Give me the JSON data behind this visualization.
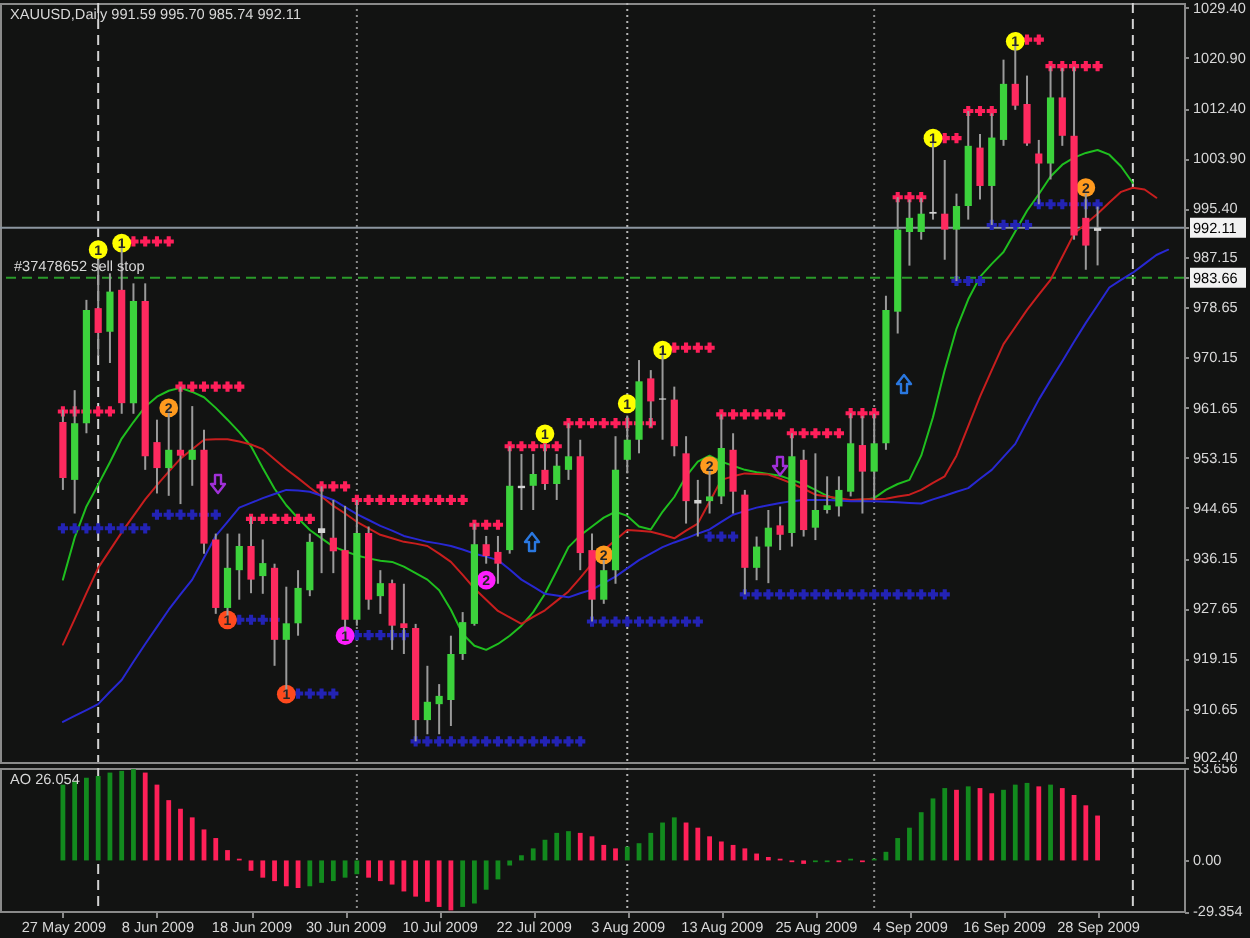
{
  "chart_data": [
    {
      "type": "candlestick",
      "title": "XAUUSD,Daily 991.59 995.70 985.74 992.11",
      "categories": [
        "27 May 2009",
        null,
        null,
        null,
        null,
        null,
        null,
        null,
        "8 Jun 2009",
        null,
        null,
        null,
        null,
        null,
        null,
        null,
        "18 Jun 2009",
        null,
        null,
        null,
        null,
        null,
        null,
        null,
        "30 Jun 2009",
        null,
        null,
        null,
        null,
        null,
        null,
        null,
        "10 Jul 2009",
        null,
        null,
        null,
        null,
        null,
        null,
        null,
        "22 Jul 2009",
        null,
        null,
        null,
        null,
        null,
        null,
        null,
        "3 Aug 2009",
        null,
        null,
        null,
        null,
        null,
        null,
        null,
        "13 Aug 2009",
        null,
        null,
        null,
        null,
        null,
        null,
        null,
        "25 Aug 2009",
        null,
        null,
        null,
        null,
        null,
        null,
        null,
        "4 Sep 2009",
        null,
        null,
        null,
        null,
        null,
        null,
        null,
        "16 Sep 2009",
        null,
        null,
        null,
        null,
        null,
        null,
        null,
        "28 Sep 2009",
        null,
        null,
        null,
        null,
        null,
        null
      ],
      "ohlc": [
        [
          959.2,
          961.3,
          947.7,
          949.7
        ],
        [
          949.4,
          964.6,
          943.7,
          959.0
        ],
        [
          959.0,
          979.9,
          957.3,
          978.2
        ],
        [
          978.5,
          986.7,
          970.4,
          974.3
        ],
        [
          974.5,
          984.4,
          969.2,
          981.3
        ],
        [
          981.6,
          989.8,
          960.6,
          962.4
        ],
        [
          962.4,
          982.7,
          960.6,
          979.7
        ],
        [
          979.7,
          982.7,
          951.1,
          953.4
        ],
        [
          955.8,
          959.6,
          947.1,
          951.4
        ],
        [
          951.4,
          961.3,
          946.7,
          954.5
        ],
        [
          954.5,
          965.2,
          945.3,
          953.5
        ],
        [
          952.8,
          961.9,
          948.4,
          954.5
        ],
        [
          954.5,
          957.9,
          936.9,
          938.6
        ],
        [
          939.3,
          940.3,
          926.7,
          927.7
        ],
        [
          927.7,
          940.3,
          925.7,
          934.5
        ],
        [
          934.1,
          940.3,
          929.1,
          938.2
        ],
        [
          938.2,
          943.2,
          930.2,
          932.5
        ],
        [
          933.1,
          939.3,
          930.1,
          935.3
        ],
        [
          934.5,
          935.2,
          917.9,
          922.3
        ],
        [
          922.3,
          931.3,
          913.1,
          925.1
        ],
        [
          925.1,
          934.1,
          923.0,
          931.1
        ],
        [
          930.7,
          940.3,
          929.7,
          938.9
        ],
        [
          940.4,
          948.3,
          933.6,
          941.2
        ],
        [
          939.6,
          946.0,
          933.6,
          937.3
        ],
        [
          937.5,
          945.0,
          923.1,
          925.7
        ],
        [
          925.7,
          946.0,
          924.7,
          940.4
        ],
        [
          940.4,
          941.5,
          927.4,
          929.1
        ],
        [
          929.7,
          934.1,
          926.7,
          931.9
        ],
        [
          931.9,
          932.5,
          920.6,
          924.7
        ],
        [
          925.1,
          931.8,
          919.9,
          924.3
        ],
        [
          924.3,
          925.0,
          905.1,
          908.7
        ],
        [
          908.7,
          917.9,
          906.3,
          911.8
        ],
        [
          911.4,
          914.8,
          906.3,
          912.8
        ],
        [
          912.1,
          923.0,
          907.7,
          919.9
        ],
        [
          919.9,
          927.0,
          918.9,
          925.3
        ],
        [
          925.0,
          942.0,
          924.7,
          938.5
        ],
        [
          938.5,
          939.9,
          935.2,
          936.5
        ],
        [
          937.2,
          939.9,
          931.8,
          935.2
        ],
        [
          937.5,
          955.1,
          936.9,
          948.4
        ],
        [
          948.0,
          953.8,
          944.3,
          948.4
        ],
        [
          948.4,
          953.8,
          944.3,
          950.4
        ],
        [
          951.1,
          955.5,
          947.7,
          948.7
        ],
        [
          948.7,
          953.8,
          946.0,
          951.8
        ],
        [
          951.1,
          959.0,
          949.4,
          953.4
        ],
        [
          953.4,
          956.2,
          934.1,
          937.0
        ],
        [
          937.5,
          940.3,
          925.4,
          929.1
        ],
        [
          929.1,
          935.8,
          928.4,
          934.1
        ],
        [
          934.1,
          956.8,
          931.8,
          951.1
        ],
        [
          952.8,
          960.3,
          950.5,
          956.2
        ],
        [
          956.2,
          969.7,
          953.9,
          966.1
        ],
        [
          966.6,
          968.0,
          958.4,
          962.7
        ],
        [
          963.0,
          971.8,
          956.2,
          963.2
        ],
        [
          963.0,
          965.2,
          953.4,
          955.1
        ],
        [
          953.9,
          956.8,
          942.0,
          945.8
        ],
        [
          946.0,
          949.4,
          939.8,
          945.4
        ],
        [
          945.8,
          951.8,
          943.7,
          946.6
        ],
        [
          946.6,
          960.5,
          945.3,
          954.8
        ],
        [
          954.5,
          957.3,
          943.7,
          947.4
        ],
        [
          946.9,
          947.7,
          930.0,
          934.5
        ],
        [
          934.5,
          939.8,
          932.4,
          938.1
        ],
        [
          938.1,
          944.3,
          931.9,
          941.3
        ],
        [
          941.7,
          944.9,
          937.5,
          940.1
        ],
        [
          940.4,
          957.3,
          938.1,
          953.4
        ],
        [
          952.8,
          954.5,
          939.8,
          940.9
        ],
        [
          941.3,
          953.9,
          939.2,
          944.3
        ],
        [
          944.3,
          950.0,
          943.7,
          945.1
        ],
        [
          944.9,
          950.0,
          943.2,
          947.7
        ],
        [
          947.4,
          960.7,
          946.6,
          955.6
        ],
        [
          955.3,
          960.2,
          943.7,
          950.8
        ],
        [
          950.8,
          960.6,
          946.0,
          955.6
        ],
        [
          955.6,
          980.6,
          954.5,
          978.2
        ],
        [
          977.9,
          997.3,
          974.2,
          991.8
        ],
        [
          991.4,
          996.9,
          985.7,
          993.8
        ],
        [
          991.4,
          997.2,
          990.1,
          994.5
        ],
        [
          994.5,
          1007.3,
          993.5,
          994.8
        ],
        [
          994.5,
          1003.6,
          986.7,
          991.8
        ],
        [
          991.8,
          997.9,
          983.1,
          995.8
        ],
        [
          995.8,
          1011.9,
          993.5,
          1006.0
        ],
        [
          1005.7,
          1008.0,
          996.9,
          999.2
        ],
        [
          999.2,
          1011.5,
          992.6,
          1007.4
        ],
        [
          1007.0,
          1020.6,
          1006.0,
          1016.5
        ],
        [
          1016.5,
          1024.0,
          1012.1,
          1012.8
        ],
        [
          1013.1,
          1017.9,
          1006.0,
          1006.4
        ],
        [
          1004.7,
          1007.0,
          996.1,
          1003.0
        ],
        [
          1003.0,
          1019.5,
          1000.3,
          1014.2
        ],
        [
          1014.2,
          1019.2,
          1006.0,
          1007.7
        ],
        [
          1007.7,
          1019.4,
          990.1,
          990.8
        ],
        [
          993.8,
          997.9,
          985.0,
          989.1
        ],
        [
          991.59,
          995.7,
          985.74,
          992.11
        ],
        null,
        null,
        null,
        null,
        null,
        null
      ],
      "colors": [
        "#ff2a5f",
        "#3cd23c",
        "#3cd23c",
        "#ff2a5f",
        "#3cd23c",
        "#ff2a5f",
        "#3cd23c",
        "#ff2a5f",
        "#ff2a5f",
        "#3cd23c",
        "#ff2a5f",
        "#3cd23c",
        "#ff2a5f",
        "#ff2a5f",
        "#3cd23c",
        "#3cd23c",
        "#ff2a5f",
        "#3cd23c",
        "#ff2a5f",
        "#3cd23c",
        "#3cd23c",
        "#3cd23c",
        "#d2d2d2",
        "#ff2a5f",
        "#ff2a5f",
        "#3cd23c",
        "#ff2a5f",
        "#3cd23c",
        "#ff2a5f",
        "#ff2a5f",
        "#ff2a5f",
        "#3cd23c",
        "#3cd23c",
        "#3cd23c",
        "#3cd23c",
        "#3cd23c",
        "#ff2a5f",
        "#ff2a5f",
        "#3cd23c",
        "#d2d2d2",
        "#3cd23c",
        "#ff2a5f",
        "#3cd23c",
        "#3cd23c",
        "#ff2a5f",
        "#ff2a5f",
        "#3cd23c",
        "#3cd23c",
        "#3cd23c",
        "#3cd23c",
        "#ff2a5f",
        "#d2d2d2",
        "#ff2a5f",
        "#ff2a5f",
        "#d2d2d2",
        "#3cd23c",
        "#3cd23c",
        "#ff2a5f",
        "#ff2a5f",
        "#3cd23c",
        "#3cd23c",
        "#ff2a5f",
        "#3cd23c",
        "#ff2a5f",
        "#3cd23c",
        "#3cd23c",
        "#3cd23c",
        "#3cd23c",
        "#ff2a5f",
        "#3cd23c",
        "#3cd23c",
        "#3cd23c",
        "#3cd23c",
        "#3cd23c",
        "#d2d2d2",
        "#ff2a5f",
        "#3cd23c",
        "#3cd23c",
        "#ff2a5f",
        "#3cd23c",
        "#3cd23c",
        "#ff2a5f",
        "#ff2a5f",
        "#ff2a5f",
        "#3cd23c",
        "#ff2a5f",
        "#ff2a5f",
        "#ff2a5f",
        "#d2d2d2",
        null,
        null,
        null,
        null,
        null,
        null
      ],
      "ylim": [
        901.6,
        1030.2
      ],
      "yticks": [
        {
          "value": 1029.4,
          "label": "1029.40"
        },
        {
          "value": 1020.9,
          "label": "1020.90"
        },
        {
          "value": 1012.4,
          "label": "1012.40"
        },
        {
          "value": 1003.9,
          "label": "1003.90"
        },
        {
          "value": 995.4,
          "label": "995.40"
        },
        992.11,
        987.15,
        983.66,
        978.65,
        970.15,
        961.65,
        953.15,
        944.65,
        936.15,
        927.65,
        919.15,
        910.65,
        {
          "value": 902.4,
          "label": "902.40"
        }
      ],
      "tick_labels": "y",
      "ref_lines": [
        {
          "axis": "y",
          "value": 992.11,
          "color": "#8c96a0"
        },
        {
          "axis": "y",
          "value": 983.66,
          "label": "#37478652 sell stop",
          "color": "#2a9a2a",
          "line_style": "dashed"
        },
        {
          "axis": "x",
          "value": "3 Aug 2009",
          "color": "#b4b4b4",
          "line_style": "dotted"
        }
      ],
      "series": [
        {
          "type": "line",
          "color": "#1fbf1f",
          "values": [
            932.5,
            939.6,
            944.9,
            948.6,
            952.4,
            956.4,
            959.2,
            961.8,
            963.5,
            964.5,
            965.0,
            964.3,
            963.4,
            961.6,
            959.6,
            957.5,
            955.1,
            951.4,
            947.9,
            945.1,
            942.9,
            940.9,
            939.5,
            938.1,
            937.3,
            936.6,
            936.1,
            935.7,
            935.5,
            934.7,
            933.6,
            932.5,
            930.7,
            927.4,
            923.3,
            921.3,
            920.6,
            921.6,
            923.0,
            924.7,
            927.0,
            930.1,
            934.0,
            938.0,
            940.0,
            941.5,
            943.0,
            944.0,
            943.3,
            941.5,
            941.0,
            944.0,
            946.5,
            950.0,
            952.5,
            953.5,
            952.5,
            951.8,
            951.1,
            950.7,
            950.4,
            950.1,
            949.4,
            948.7,
            947.7,
            946.7,
            946.0,
            946.0,
            946.0,
            946.3,
            947.7,
            948.7,
            949.4,
            953.5,
            960.0,
            968.0,
            975.0,
            980.0,
            983.8,
            986.0,
            988.0,
            991.5,
            995.0,
            997.8,
            1000.8,
            1002.8,
            1004.0,
            1004.8,
            1005.3,
            1004.5,
            1002.5,
            999.7,
            null,
            null,
            null
          ]
        },
        {
          "type": "line",
          "color": "#c81e1e",
          "values": [
            921.5,
            925.8,
            930.2,
            934.5,
            937.5,
            940.5,
            943.3,
            946.1,
            948.5,
            950.8,
            953.0,
            954.6,
            956.2,
            956.3,
            956.3,
            955.9,
            955.4,
            954.6,
            952.9,
            951.2,
            949.7,
            948.1,
            946.6,
            945.0,
            943.7,
            942.3,
            941.2,
            940.1,
            939.5,
            938.9,
            938.6,
            938.2,
            936.9,
            935.5,
            933.3,
            931.0,
            929.1,
            927.2,
            926.1,
            925.0,
            926.2,
            927.3,
            928.9,
            930.5,
            932.8,
            935.2,
            937.5,
            939.2,
            940.9,
            940.8,
            940.6,
            940.1,
            939.5,
            940.8,
            942.0,
            945.7,
            949.4,
            950.0,
            950.5,
            950.4,
            950.3,
            949.6,
            948.8,
            947.9,
            946.9,
            946.6,
            946.3,
            946.0,
            946.1,
            946.1,
            946.2,
            946.6,
            946.9,
            947.7,
            948.9,
            950.0,
            953.5,
            958.5,
            963.5,
            968.0,
            972.4,
            975.3,
            978.2,
            980.8,
            983.3,
            987.2,
            991.1,
            992.8,
            994.5,
            996.4,
            998.2,
            998.9,
            998.6,
            997.2,
            null
          ]
        },
        {
          "type": "line",
          "color": "#2828d2",
          "values": [
            908.4,
            909.4,
            910.4,
            911.4,
            913.5,
            915.5,
            918.6,
            921.6,
            924.5,
            927.4,
            930.0,
            932.5,
            936.2,
            939.9,
            942.3,
            944.7,
            945.5,
            946.3,
            947.0,
            947.7,
            947.6,
            947.4,
            946.7,
            946.0,
            944.8,
            943.6,
            942.6,
            941.6,
            940.8,
            939.9,
            939.4,
            938.9,
            938.6,
            938.2,
            937.6,
            936.9,
            936.4,
            935.8,
            934.2,
            932.5,
            931.3,
            930.1,
            929.8,
            929.5,
            930.2,
            930.8,
            931.9,
            933.0,
            934.4,
            935.8,
            936.9,
            938.0,
            938.8,
            939.5,
            940.3,
            941.0,
            942.3,
            943.5,
            944.1,
            944.7,
            945.1,
            945.5,
            945.8,
            946.0,
            946.0,
            946.0,
            945.9,
            945.8,
            945.8,
            945.8,
            945.7,
            945.6,
            945.5,
            945.4,
            946.1,
            946.7,
            947.4,
            948.0,
            949.6,
            951.1,
            953.3,
            955.5,
            959.3,
            963.0,
            966.3,
            969.5,
            972.8,
            976.0,
            979.0,
            982.0,
            983.3,
            984.5,
            986.0,
            987.5,
            988.4
          ]
        },
        {
          "type": "scatter",
          "marker": "cross",
          "color": "#ff1f5a",
          "values": [
            961.0,
            961.0,
            961.0,
            961.0,
            961.0,
            null,
            989.8,
            989.8,
            989.8,
            989.8,
            965.2,
            965.2,
            965.2,
            965.2,
            965.2,
            965.2,
            942.8,
            942.8,
            942.8,
            942.8,
            942.8,
            942.8,
            948.3,
            948.3,
            948.3,
            946.0,
            946.0,
            946.0,
            946.0,
            946.0,
            946.0,
            946.0,
            946.0,
            946.0,
            946.0,
            941.8,
            941.8,
            941.8,
            955.1,
            955.1,
            955.1,
            955.1,
            955.1,
            959.0,
            959.0,
            959.0,
            959.0,
            959.0,
            959.0,
            959.0,
            959.0,
            null,
            971.8,
            971.8,
            971.8,
            971.8,
            960.5,
            960.5,
            960.5,
            960.5,
            960.5,
            960.5,
            957.3,
            957.3,
            957.3,
            957.3,
            957.3,
            960.7,
            960.7,
            960.7,
            null,
            997.3,
            997.3,
            997.3,
            null,
            1007.3,
            1007.3,
            1011.9,
            1011.9,
            1011.9,
            null,
            null,
            1024.0,
            1024.0,
            1019.5,
            1019.5,
            1019.5,
            1019.5,
            1019.5,
            null,
            null,
            null,
            null,
            null,
            null
          ]
        },
        {
          "type": "scatter",
          "marker": "cross",
          "color": "#2323b4",
          "values": [
            941.2,
            941.2,
            941.2,
            941.2,
            941.2,
            941.2,
            941.2,
            941.2,
            943.5,
            943.5,
            943.5,
            943.5,
            943.5,
            943.5,
            null,
            925.7,
            925.7,
            925.7,
            925.7,
            null,
            913.2,
            913.2,
            913.2,
            913.2,
            null,
            923.1,
            923.1,
            923.1,
            923.1,
            923.1,
            905.1,
            905.1,
            905.1,
            905.1,
            905.1,
            905.1,
            905.1,
            905.1,
            905.1,
            905.1,
            905.1,
            905.1,
            905.1,
            905.1,
            905.1,
            925.4,
            925.4,
            925.4,
            925.4,
            925.4,
            925.4,
            925.4,
            925.4,
            925.4,
            925.4,
            939.8,
            939.8,
            939.8,
            930.0,
            930.0,
            930.0,
            930.0,
            930.0,
            930.0,
            930.0,
            930.0,
            930.0,
            930.0,
            930.0,
            930.0,
            930.0,
            930.0,
            930.0,
            930.0,
            930.0,
            930.0,
            983.1,
            983.1,
            983.1,
            992.6,
            992.6,
            992.6,
            992.6,
            996.1,
            996.1,
            996.1,
            996.1,
            996.1,
            996.1,
            null,
            null,
            null,
            null,
            null,
            null
          ]
        },
        {
          "type": "scatter",
          "marker": "circle",
          "name": "1",
          "color": "#ffff00",
          "values": [
            null,
            null,
            null,
            988.4,
            null,
            989.5,
            null,
            null,
            null,
            null,
            null,
            null,
            null,
            null,
            null,
            null,
            null,
            null,
            null,
            null,
            null,
            null,
            null,
            null,
            null,
            null,
            null,
            null,
            null,
            null,
            null,
            null,
            null,
            null,
            null,
            null,
            null,
            null,
            null,
            null,
            null,
            957.2,
            null,
            null,
            null,
            null,
            null,
            null,
            962.3,
            null,
            null,
            971.4,
            null,
            null,
            null,
            null,
            null,
            null,
            null,
            null,
            null,
            null,
            null,
            null,
            null,
            null,
            null,
            null,
            null,
            null,
            null,
            null,
            null,
            null,
            1007.3,
            null,
            null,
            null,
            null,
            null,
            null,
            1023.7,
            null,
            null,
            null,
            null,
            null,
            null,
            null,
            null,
            null,
            null,
            null,
            null,
            null
          ]
        },
        {
          "type": "scatter",
          "marker": "circle",
          "name": "2",
          "color": "#ff9a1e",
          "values": [
            null,
            null,
            null,
            null,
            null,
            null,
            null,
            null,
            null,
            961.6,
            null,
            null,
            null,
            null,
            null,
            null,
            null,
            null,
            null,
            null,
            null,
            null,
            null,
            null,
            null,
            null,
            null,
            null,
            null,
            null,
            null,
            null,
            null,
            null,
            null,
            null,
            null,
            null,
            null,
            null,
            null,
            null,
            null,
            null,
            null,
            null,
            936.7,
            null,
            null,
            null,
            null,
            null,
            null,
            null,
            null,
            951.8,
            null,
            null,
            null,
            null,
            null,
            null,
            null,
            null,
            null,
            null,
            null,
            null,
            null,
            null,
            null,
            null,
            null,
            null,
            null,
            null,
            null,
            null,
            null,
            null,
            null,
            null,
            null,
            null,
            null,
            null,
            null,
            998.9,
            null,
            null,
            null,
            null,
            null,
            null,
            null
          ]
        },
        {
          "type": "scatter",
          "marker": "circle",
          "name": "1",
          "color": "#ff4a1e",
          "values": [
            null,
            null,
            null,
            null,
            null,
            null,
            null,
            null,
            null,
            null,
            null,
            null,
            null,
            null,
            925.7,
            null,
            null,
            null,
            null,
            913.1,
            null,
            null,
            null,
            null,
            null,
            null,
            null,
            null,
            null,
            null,
            null,
            null,
            null,
            null,
            null,
            null,
            null,
            null,
            null,
            null,
            null,
            null,
            null,
            null,
            null,
            null,
            null,
            null,
            null,
            null,
            null,
            null,
            null,
            null,
            null,
            null,
            null,
            null,
            null,
            null,
            null,
            null,
            null,
            null,
            null,
            null,
            null,
            null,
            null,
            null,
            null,
            null,
            null,
            null,
            null,
            null,
            null,
            null,
            null,
            null,
            null,
            null,
            null,
            null,
            null,
            null,
            null,
            null,
            null,
            null,
            null,
            null,
            null,
            null,
            null
          ]
        },
        {
          "type": "scatter",
          "marker": "circle",
          "name": "1",
          "color": "#ff1eff",
          "values": [
            null,
            null,
            null,
            null,
            null,
            null,
            null,
            null,
            null,
            null,
            null,
            null,
            null,
            null,
            null,
            null,
            null,
            null,
            null,
            null,
            null,
            null,
            null,
            null,
            923.0,
            null,
            null,
            null,
            null,
            null,
            null,
            null,
            null,
            null,
            null,
            null,
            null,
            null,
            null,
            null,
            null,
            null,
            null,
            null,
            null,
            null,
            null,
            null,
            null,
            null,
            null,
            null,
            null,
            null,
            null,
            null,
            null,
            null,
            null,
            null,
            null,
            null,
            null,
            null,
            null,
            null,
            null,
            null,
            null,
            null,
            null,
            null,
            null,
            null,
            null,
            null,
            null,
            null,
            null,
            null,
            null,
            null,
            null,
            null,
            null,
            null,
            null,
            null,
            null,
            null,
            null,
            null,
            null,
            null,
            null
          ]
        },
        {
          "type": "scatter",
          "marker": "circle",
          "name": "2",
          "color": "#ff1eff",
          "values": [
            null,
            null,
            null,
            null,
            null,
            null,
            null,
            null,
            null,
            null,
            null,
            null,
            null,
            null,
            null,
            null,
            null,
            null,
            null,
            null,
            null,
            null,
            null,
            null,
            null,
            null,
            null,
            null,
            null,
            null,
            null,
            null,
            null,
            null,
            null,
            null,
            932.4,
            null,
            null,
            null,
            null,
            null,
            null,
            null,
            null,
            null,
            null,
            null,
            null,
            null,
            null,
            null,
            null,
            null,
            null,
            null,
            null,
            null,
            null,
            null,
            null,
            null,
            null,
            null,
            null,
            null,
            null,
            null,
            null,
            null,
            null,
            null,
            null,
            null,
            null,
            null,
            null,
            null,
            null,
            null,
            null,
            null,
            null,
            null,
            null,
            null,
            null,
            null,
            null,
            null,
            null,
            null,
            null,
            null,
            null
          ]
        }
      ]
    },
    {
      "type": "bar",
      "title": "AO 26.054",
      "categories": [
        "27 May 2009",
        null,
        null,
        null,
        null,
        null,
        null,
        null,
        "8 Jun 2009",
        null,
        null,
        null,
        null,
        null,
        null,
        null,
        "18 Jun 2009",
        null,
        null,
        null,
        null,
        null,
        null,
        null,
        "30 Jun 2009",
        null,
        null,
        null,
        null,
        null,
        null,
        null,
        "10 Jul 2009",
        null,
        null,
        null,
        null,
        null,
        null,
        null,
        "22 Jul 2009",
        null,
        null,
        null,
        null,
        null,
        null,
        null,
        "3 Aug 2009",
        null,
        null,
        null,
        null,
        null,
        null,
        null,
        "13 Aug 2009",
        null,
        null,
        null,
        null,
        null,
        null,
        null,
        "25 Aug 2009",
        null,
        null,
        null,
        null,
        null,
        null,
        null,
        "4 Sep 2009",
        null,
        null,
        null,
        null,
        null,
        null,
        null,
        "16 Sep 2009",
        null,
        null,
        null,
        null,
        null,
        null,
        null,
        "28 Sep 2009",
        null,
        null,
        null,
        null,
        null,
        null
      ],
      "values": [
        44,
        46,
        48,
        49,
        51,
        52,
        53,
        51,
        44,
        35,
        30,
        25,
        18,
        13,
        6,
        1,
        -6,
        -10,
        -12,
        -15,
        -16,
        -15,
        -13,
        -12,
        -10,
        -8,
        -10,
        -12,
        -14,
        -18,
        -21,
        -24,
        -27,
        -29,
        -27,
        -25,
        -17,
        -11,
        -3,
        3,
        7,
        12,
        16,
        17,
        16,
        14,
        9,
        7,
        8,
        10,
        16,
        22,
        25,
        22,
        19,
        14,
        11,
        9,
        7,
        4,
        2,
        1,
        -1,
        -2,
        -1,
        -1,
        -1,
        1,
        -1,
        1,
        5,
        13,
        19,
        28,
        36,
        42,
        41,
        43,
        42,
        39,
        41,
        44,
        45,
        43,
        44,
        42,
        38,
        32,
        26.054,
        null,
        null,
        null,
        null,
        null,
        null
      ],
      "colors": [
        "#128a1e",
        "#128a1e",
        "#128a1e",
        "#128a1e",
        "#128a1e",
        "#128a1e",
        "#128a1e",
        "#ff2058",
        "#ff2058",
        "#ff2058",
        "#ff2058",
        "#ff2058",
        "#ff2058",
        "#ff2058",
        "#ff2058",
        "#ff2058",
        "#ff2058",
        "#ff2058",
        "#ff2058",
        "#ff2058",
        "#ff2058",
        "#128a1e",
        "#128a1e",
        "#128a1e",
        "#128a1e",
        "#128a1e",
        "#ff2058",
        "#ff2058",
        "#ff2058",
        "#ff2058",
        "#ff2058",
        "#ff2058",
        "#ff2058",
        "#ff2058",
        "#128a1e",
        "#128a1e",
        "#128a1e",
        "#128a1e",
        "#128a1e",
        "#128a1e",
        "#128a1e",
        "#128a1e",
        "#128a1e",
        "#128a1e",
        "#ff2058",
        "#ff2058",
        "#ff2058",
        "#ff2058",
        "#128a1e",
        "#128a1e",
        "#128a1e",
        "#128a1e",
        "#128a1e",
        "#ff2058",
        "#ff2058",
        "#ff2058",
        "#ff2058",
        "#ff2058",
        "#ff2058",
        "#ff2058",
        "#ff2058",
        "#ff2058",
        "#ff2058",
        "#ff2058",
        "#128a1e",
        "#128a1e",
        "#ff2058",
        "#128a1e",
        "#ff2058",
        "#128a1e",
        "#128a1e",
        "#128a1e",
        "#128a1e",
        "#128a1e",
        "#128a1e",
        "#128a1e",
        "#ff2058",
        "#128a1e",
        "#ff2058",
        "#ff2058",
        "#128a1e",
        "#128a1e",
        "#128a1e",
        "#ff2058",
        "#128a1e",
        "#ff2058",
        "#ff2058",
        "#ff2058",
        "#ff2058",
        null,
        null,
        null,
        null,
        null,
        null
      ],
      "ylim": [
        -29.354,
        53.656
      ],
      "yticks": [
        53.656,
        {
          "value": 0,
          "label": "0.00"
        },
        -29.354
      ],
      "ref_lines": [
        {
          "axis": "x",
          "value": "3 Aug 2009",
          "color": "#b4b4b4",
          "line_style": "dotted"
        }
      ]
    }
  ]
}
